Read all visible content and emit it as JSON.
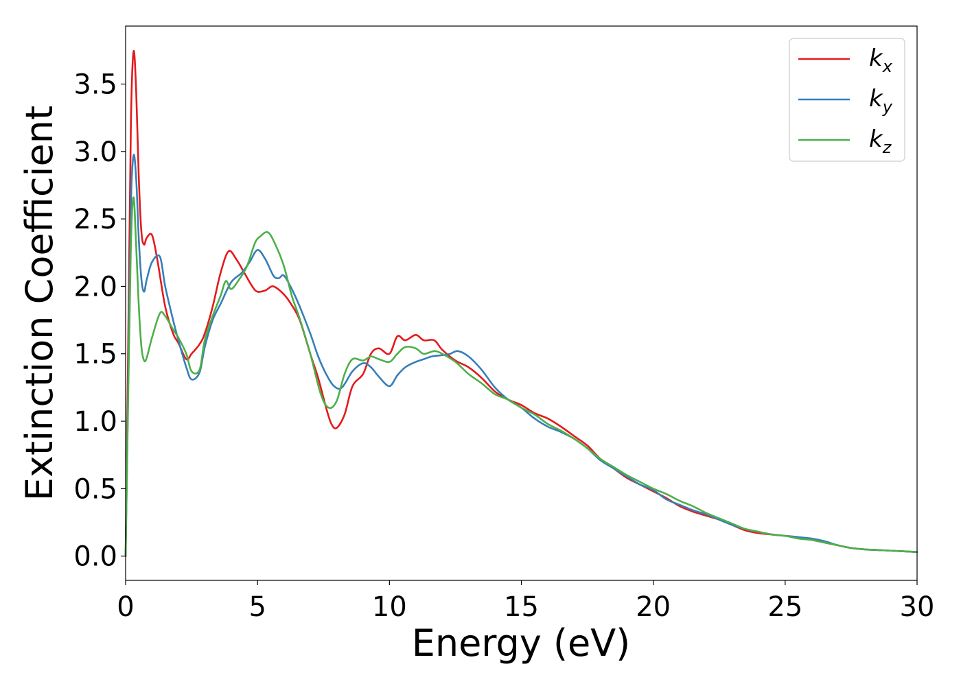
{
  "chart_data": {
    "type": "line",
    "title": "",
    "xlabel": "Energy (eV)",
    "ylabel": "Extinction Coefficient",
    "xlim": [
      0,
      30
    ],
    "ylim": [
      -0.18,
      3.93
    ],
    "xticks": [
      0,
      5,
      10,
      15,
      20,
      25,
      30
    ],
    "xtick_labels": [
      "0",
      "5",
      "10",
      "15",
      "20",
      "25",
      "30"
    ],
    "yticks": [
      0.0,
      0.5,
      1.0,
      1.5,
      2.0,
      2.5,
      3.0,
      3.5
    ],
    "ytick_labels": [
      "0.0",
      "0.5",
      "1.0",
      "1.5",
      "2.0",
      "2.5",
      "3.0",
      "3.5"
    ],
    "grid": false,
    "legend_position": "top-right",
    "series": [
      {
        "name": "kx",
        "label_main": "k",
        "label_sub": "x",
        "color": "#e41a1c",
        "x": [
          0,
          0.1,
          0.2,
          0.3,
          0.4,
          0.5,
          0.6,
          0.7,
          0.8,
          1.0,
          1.2,
          1.5,
          1.8,
          2.0,
          2.3,
          2.5,
          2.8,
          3.0,
          3.3,
          3.6,
          3.9,
          4.2,
          4.5,
          4.8,
          5.0,
          5.3,
          5.6,
          6.0,
          6.3,
          6.6,
          7.0,
          7.3,
          7.6,
          7.8,
          8.0,
          8.3,
          8.6,
          9.0,
          9.3,
          9.6,
          10.0,
          10.3,
          10.6,
          11.0,
          11.3,
          11.7,
          12.0,
          12.5,
          13.0,
          13.5,
          14.0,
          14.5,
          15.0,
          15.5,
          16.0,
          16.5,
          17.0,
          17.5,
          18.0,
          18.5,
          19.0,
          19.5,
          20.0,
          20.5,
          21.0,
          21.5,
          22.0,
          22.5,
          23.0,
          23.5,
          24.0,
          24.5,
          25.0,
          25.5,
          26.0,
          26.5,
          27.0,
          27.5,
          28.0,
          28.5,
          29.0,
          29.5,
          30.0
        ],
        "y": [
          0.0,
          1.6,
          3.2,
          3.74,
          3.45,
          2.8,
          2.4,
          2.31,
          2.36,
          2.38,
          2.2,
          1.85,
          1.65,
          1.58,
          1.46,
          1.5,
          1.57,
          1.65,
          1.85,
          2.1,
          2.26,
          2.2,
          2.1,
          2.0,
          1.96,
          1.97,
          2.0,
          1.94,
          1.86,
          1.75,
          1.5,
          1.32,
          1.1,
          0.98,
          0.95,
          1.05,
          1.26,
          1.35,
          1.5,
          1.54,
          1.5,
          1.63,
          1.6,
          1.64,
          1.6,
          1.6,
          1.53,
          1.45,
          1.4,
          1.32,
          1.22,
          1.16,
          1.12,
          1.06,
          1.02,
          0.96,
          0.89,
          0.82,
          0.72,
          0.65,
          0.58,
          0.53,
          0.48,
          0.43,
          0.37,
          0.33,
          0.3,
          0.27,
          0.23,
          0.19,
          0.17,
          0.16,
          0.15,
          0.14,
          0.12,
          0.1,
          0.08,
          0.06,
          0.05,
          0.045,
          0.04,
          0.035,
          0.03
        ]
      },
      {
        "name": "ky",
        "label_main": "k",
        "label_sub": "y",
        "color": "#377eb8",
        "x": [
          0,
          0.1,
          0.2,
          0.3,
          0.4,
          0.5,
          0.6,
          0.7,
          0.8,
          1.0,
          1.3,
          1.5,
          1.8,
          2.0,
          2.3,
          2.5,
          2.8,
          3.0,
          3.3,
          3.6,
          4.0,
          4.4,
          4.7,
          5.0,
          5.3,
          5.6,
          5.8,
          6.0,
          6.3,
          6.6,
          7.0,
          7.3,
          7.6,
          7.9,
          8.2,
          8.6,
          9.0,
          9.3,
          9.6,
          10.0,
          10.3,
          10.6,
          11.0,
          11.3,
          11.6,
          12.0,
          12.3,
          12.6,
          13.0,
          13.5,
          14.0,
          14.5,
          15.0,
          15.5,
          16.0,
          16.5,
          17.0,
          17.5,
          18.0,
          18.5,
          19.0,
          19.5,
          20.0,
          20.5,
          21.0,
          21.5,
          22.0,
          22.5,
          23.0,
          23.5,
          24.0,
          24.5,
          25.0,
          25.5,
          26.0,
          26.5,
          27.0,
          27.5,
          28.0,
          28.5,
          29.0,
          29.5,
          30.0
        ],
        "y": [
          0.0,
          1.3,
          2.6,
          2.97,
          2.8,
          2.35,
          2.05,
          1.96,
          2.05,
          2.18,
          2.22,
          2.0,
          1.75,
          1.6,
          1.4,
          1.31,
          1.36,
          1.55,
          1.75,
          1.87,
          2.03,
          2.1,
          2.18,
          2.27,
          2.2,
          2.08,
          2.06,
          2.08,
          1.98,
          1.85,
          1.65,
          1.48,
          1.35,
          1.26,
          1.25,
          1.37,
          1.43,
          1.4,
          1.33,
          1.26,
          1.34,
          1.4,
          1.44,
          1.46,
          1.48,
          1.49,
          1.5,
          1.52,
          1.48,
          1.38,
          1.25,
          1.16,
          1.1,
          1.02,
          0.96,
          0.92,
          0.87,
          0.8,
          0.71,
          0.65,
          0.59,
          0.53,
          0.49,
          0.42,
          0.38,
          0.34,
          0.31,
          0.27,
          0.23,
          0.2,
          0.18,
          0.16,
          0.15,
          0.14,
          0.13,
          0.11,
          0.08,
          0.06,
          0.05,
          0.045,
          0.04,
          0.035,
          0.03
        ]
      },
      {
        "name": "kz",
        "label_main": "k",
        "label_sub": "z",
        "color": "#4daf4a",
        "x": [
          0,
          0.1,
          0.2,
          0.3,
          0.4,
          0.5,
          0.6,
          0.7,
          0.8,
          1.0,
          1.3,
          1.5,
          1.8,
          2.0,
          2.3,
          2.5,
          2.8,
          3.0,
          3.3,
          3.6,
          3.8,
          4.0,
          4.3,
          4.6,
          4.9,
          5.1,
          5.4,
          5.7,
          6.0,
          6.3,
          6.6,
          7.0,
          7.4,
          7.7,
          8.0,
          8.3,
          8.6,
          9.0,
          9.3,
          9.6,
          10.0,
          10.3,
          10.6,
          11.0,
          11.3,
          11.7,
          12.0,
          12.5,
          13.0,
          13.5,
          14.0,
          14.5,
          15.0,
          15.5,
          16.0,
          16.5,
          17.0,
          17.5,
          18.0,
          18.5,
          19.0,
          19.5,
          20.0,
          20.5,
          21.0,
          21.5,
          22.0,
          22.5,
          23.0,
          23.5,
          24.0,
          24.5,
          25.0,
          25.5,
          26.0,
          26.5,
          27.0,
          27.5,
          28.0,
          28.5,
          29.0,
          29.5,
          30.0
        ],
        "y": [
          0.0,
          1.2,
          2.3,
          2.66,
          2.3,
          1.85,
          1.55,
          1.45,
          1.47,
          1.62,
          1.8,
          1.78,
          1.68,
          1.62,
          1.5,
          1.37,
          1.38,
          1.6,
          1.78,
          1.93,
          2.04,
          1.98,
          2.05,
          2.15,
          2.32,
          2.37,
          2.4,
          2.3,
          2.15,
          1.93,
          1.76,
          1.5,
          1.2,
          1.1,
          1.15,
          1.35,
          1.46,
          1.45,
          1.48,
          1.46,
          1.44,
          1.5,
          1.55,
          1.54,
          1.5,
          1.52,
          1.5,
          1.44,
          1.35,
          1.28,
          1.2,
          1.16,
          1.1,
          1.05,
          0.98,
          0.93,
          0.87,
          0.8,
          0.72,
          0.66,
          0.6,
          0.55,
          0.5,
          0.46,
          0.41,
          0.37,
          0.32,
          0.28,
          0.24,
          0.2,
          0.18,
          0.16,
          0.15,
          0.13,
          0.12,
          0.1,
          0.08,
          0.06,
          0.05,
          0.045,
          0.04,
          0.035,
          0.03
        ]
      }
    ]
  }
}
